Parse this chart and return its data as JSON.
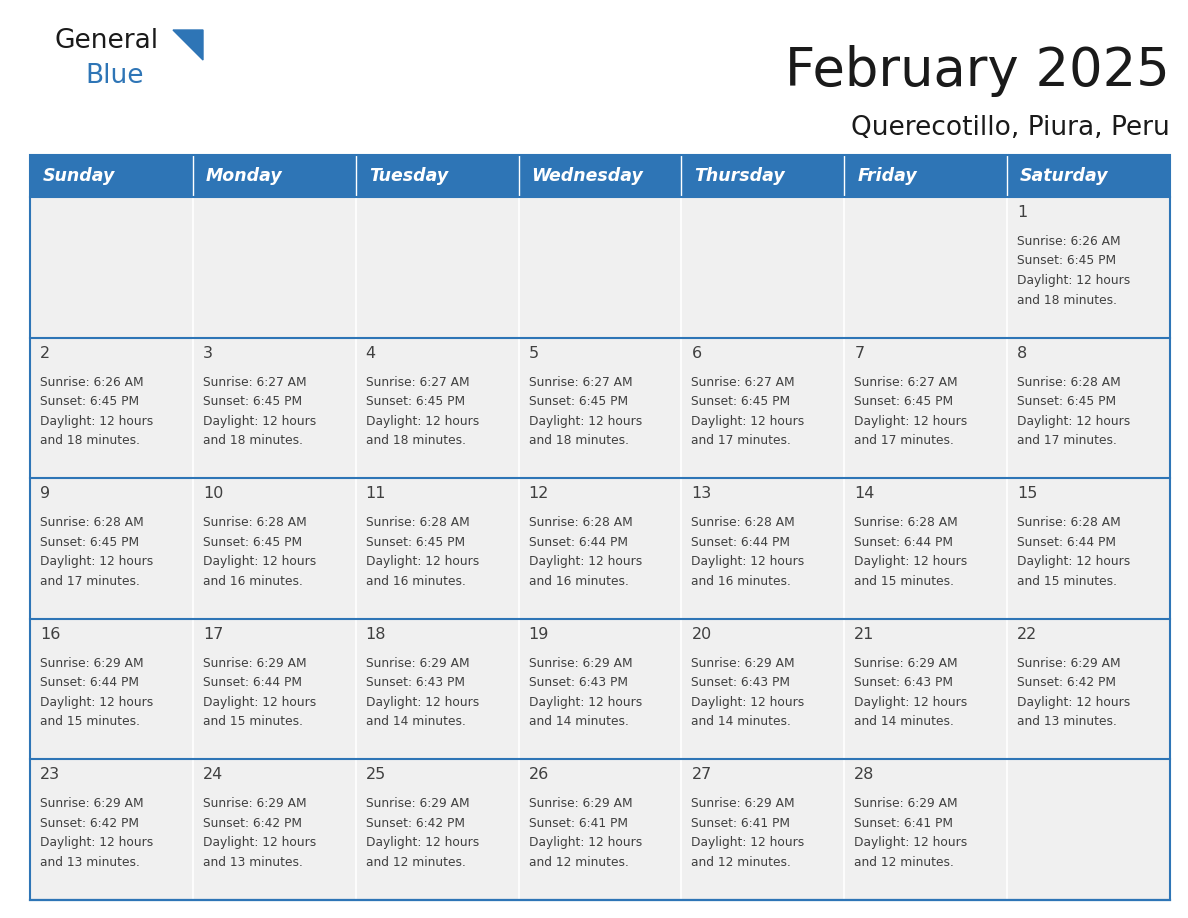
{
  "title": "February 2025",
  "subtitle": "Querecotillo, Piura, Peru",
  "header_color": "#2E75B6",
  "header_text_color": "#FFFFFF",
  "cell_bg_color": "#F0F0F0",
  "border_color": "#2E75B6",
  "text_color": "#404040",
  "days_of_week": [
    "Sunday",
    "Monday",
    "Tuesday",
    "Wednesday",
    "Thursday",
    "Friday",
    "Saturday"
  ],
  "calendar_data": [
    [
      null,
      null,
      null,
      null,
      null,
      null,
      {
        "day": "1",
        "sunrise": "6:26 AM",
        "sunset": "6:45 PM",
        "daylight": "12 hours",
        "daylight2": "and 18 minutes."
      }
    ],
    [
      {
        "day": "2",
        "sunrise": "6:26 AM",
        "sunset": "6:45 PM",
        "daylight": "12 hours",
        "daylight2": "and 18 minutes."
      },
      {
        "day": "3",
        "sunrise": "6:27 AM",
        "sunset": "6:45 PM",
        "daylight": "12 hours",
        "daylight2": "and 18 minutes."
      },
      {
        "day": "4",
        "sunrise": "6:27 AM",
        "sunset": "6:45 PM",
        "daylight": "12 hours",
        "daylight2": "and 18 minutes."
      },
      {
        "day": "5",
        "sunrise": "6:27 AM",
        "sunset": "6:45 PM",
        "daylight": "12 hours",
        "daylight2": "and 18 minutes."
      },
      {
        "day": "6",
        "sunrise": "6:27 AM",
        "sunset": "6:45 PM",
        "daylight": "12 hours",
        "daylight2": "and 17 minutes."
      },
      {
        "day": "7",
        "sunrise": "6:27 AM",
        "sunset": "6:45 PM",
        "daylight": "12 hours",
        "daylight2": "and 17 minutes."
      },
      {
        "day": "8",
        "sunrise": "6:28 AM",
        "sunset": "6:45 PM",
        "daylight": "12 hours",
        "daylight2": "and 17 minutes."
      }
    ],
    [
      {
        "day": "9",
        "sunrise": "6:28 AM",
        "sunset": "6:45 PM",
        "daylight": "12 hours",
        "daylight2": "and 17 minutes."
      },
      {
        "day": "10",
        "sunrise": "6:28 AM",
        "sunset": "6:45 PM",
        "daylight": "12 hours",
        "daylight2": "and 16 minutes."
      },
      {
        "day": "11",
        "sunrise": "6:28 AM",
        "sunset": "6:45 PM",
        "daylight": "12 hours",
        "daylight2": "and 16 minutes."
      },
      {
        "day": "12",
        "sunrise": "6:28 AM",
        "sunset": "6:44 PM",
        "daylight": "12 hours",
        "daylight2": "and 16 minutes."
      },
      {
        "day": "13",
        "sunrise": "6:28 AM",
        "sunset": "6:44 PM",
        "daylight": "12 hours",
        "daylight2": "and 16 minutes."
      },
      {
        "day": "14",
        "sunrise": "6:28 AM",
        "sunset": "6:44 PM",
        "daylight": "12 hours",
        "daylight2": "and 15 minutes."
      },
      {
        "day": "15",
        "sunrise": "6:28 AM",
        "sunset": "6:44 PM",
        "daylight": "12 hours",
        "daylight2": "and 15 minutes."
      }
    ],
    [
      {
        "day": "16",
        "sunrise": "6:29 AM",
        "sunset": "6:44 PM",
        "daylight": "12 hours",
        "daylight2": "and 15 minutes."
      },
      {
        "day": "17",
        "sunrise": "6:29 AM",
        "sunset": "6:44 PM",
        "daylight": "12 hours",
        "daylight2": "and 15 minutes."
      },
      {
        "day": "18",
        "sunrise": "6:29 AM",
        "sunset": "6:43 PM",
        "daylight": "12 hours",
        "daylight2": "and 14 minutes."
      },
      {
        "day": "19",
        "sunrise": "6:29 AM",
        "sunset": "6:43 PM",
        "daylight": "12 hours",
        "daylight2": "and 14 minutes."
      },
      {
        "day": "20",
        "sunrise": "6:29 AM",
        "sunset": "6:43 PM",
        "daylight": "12 hours",
        "daylight2": "and 14 minutes."
      },
      {
        "day": "21",
        "sunrise": "6:29 AM",
        "sunset": "6:43 PM",
        "daylight": "12 hours",
        "daylight2": "and 14 minutes."
      },
      {
        "day": "22",
        "sunrise": "6:29 AM",
        "sunset": "6:42 PM",
        "daylight": "12 hours",
        "daylight2": "and 13 minutes."
      }
    ],
    [
      {
        "day": "23",
        "sunrise": "6:29 AM",
        "sunset": "6:42 PM",
        "daylight": "12 hours",
        "daylight2": "and 13 minutes."
      },
      {
        "day": "24",
        "sunrise": "6:29 AM",
        "sunset": "6:42 PM",
        "daylight": "12 hours",
        "daylight2": "and 13 minutes."
      },
      {
        "day": "25",
        "sunrise": "6:29 AM",
        "sunset": "6:42 PM",
        "daylight": "12 hours",
        "daylight2": "and 12 minutes."
      },
      {
        "day": "26",
        "sunrise": "6:29 AM",
        "sunset": "6:41 PM",
        "daylight": "12 hours",
        "daylight2": "and 12 minutes."
      },
      {
        "day": "27",
        "sunrise": "6:29 AM",
        "sunset": "6:41 PM",
        "daylight": "12 hours",
        "daylight2": "and 12 minutes."
      },
      {
        "day": "28",
        "sunrise": "6:29 AM",
        "sunset": "6:41 PM",
        "daylight": "12 hours",
        "daylight2": "and 12 minutes."
      },
      null
    ]
  ],
  "num_weeks": 5,
  "num_cols": 7,
  "fig_width": 11.88,
  "fig_height": 9.18,
  "dpi": 100
}
